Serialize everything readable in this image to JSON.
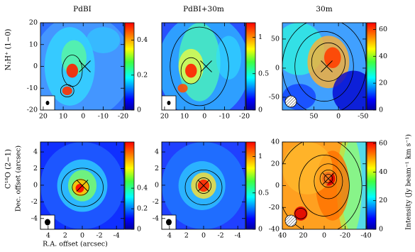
{
  "chart_data": [
    {
      "type": "heatmap",
      "title": "PdBI",
      "row_label": "N₂H⁺ (1−0)",
      "xlim": [
        21.4,
        -20.5
      ],
      "ylim": [
        -20,
        20
      ],
      "xticks": [
        20,
        10,
        0,
        -10,
        -20
      ],
      "yticks": [
        20,
        10,
        0,
        -10,
        -20
      ],
      "clim": [
        0,
        0.5
      ],
      "cticks": [
        0,
        0.2,
        0.4
      ]
    },
    {
      "type": "heatmap",
      "title": "PdBI+30m",
      "xlim": [
        21.4,
        -20.5
      ],
      "ylim": [
        -20,
        20
      ],
      "xticks": [
        20,
        10,
        0,
        -10,
        -20
      ],
      "clim": [
        0,
        1.2
      ],
      "cticks": [
        0,
        0.5,
        1
      ]
    },
    {
      "type": "heatmap",
      "title": "30m",
      "xlim": [
        114,
        -56
      ],
      "ylim": [
        -72,
        78
      ],
      "xticks": [
        50,
        0,
        -50
      ],
      "yticks": [
        50,
        0,
        -50
      ],
      "clim": [
        0,
        65
      ],
      "cticks": [
        0,
        20,
        40,
        60
      ]
    },
    {
      "type": "heatmap",
      "row_label": "C¹⁸O (2−1)",
      "xlabel": "R.A. offset (arcsec)",
      "ylabel": "Dec. offset (arcsec)",
      "xlim": [
        4.9,
        -4.9
      ],
      "ylim": [
        -5.3,
        5.2
      ],
      "xticks": [
        4,
        2,
        0,
        -2,
        -4
      ],
      "yticks": [
        4,
        2,
        0,
        -2,
        -4
      ],
      "clim": [
        0,
        0.85
      ],
      "cticks": [
        0,
        0.2,
        0.4
      ]
    },
    {
      "type": "heatmap",
      "xlim": [
        4.9,
        -4.9
      ],
      "ylim": [
        -5.3,
        5.2
      ],
      "xticks": [
        4,
        2,
        0,
        -2,
        -4
      ],
      "yticks": [
        4,
        2,
        0,
        -2,
        -4
      ],
      "clim": [
        0,
        1.2
      ],
      "cticks": [
        0,
        0.5,
        1
      ]
    },
    {
      "type": "heatmap",
      "clabel": "Intensity (Jy beam⁻¹ km s⁻¹)",
      "xlim": [
        40,
        -40
      ],
      "ylim": [
        -40,
        40
      ],
      "xticks": [
        40,
        20,
        0,
        -20,
        -40
      ],
      "yticks": [
        40,
        20,
        0,
        -20,
        -40
      ],
      "clim": [
        0,
        61
      ],
      "cticks": [
        0,
        20,
        40,
        60
      ]
    }
  ]
}
